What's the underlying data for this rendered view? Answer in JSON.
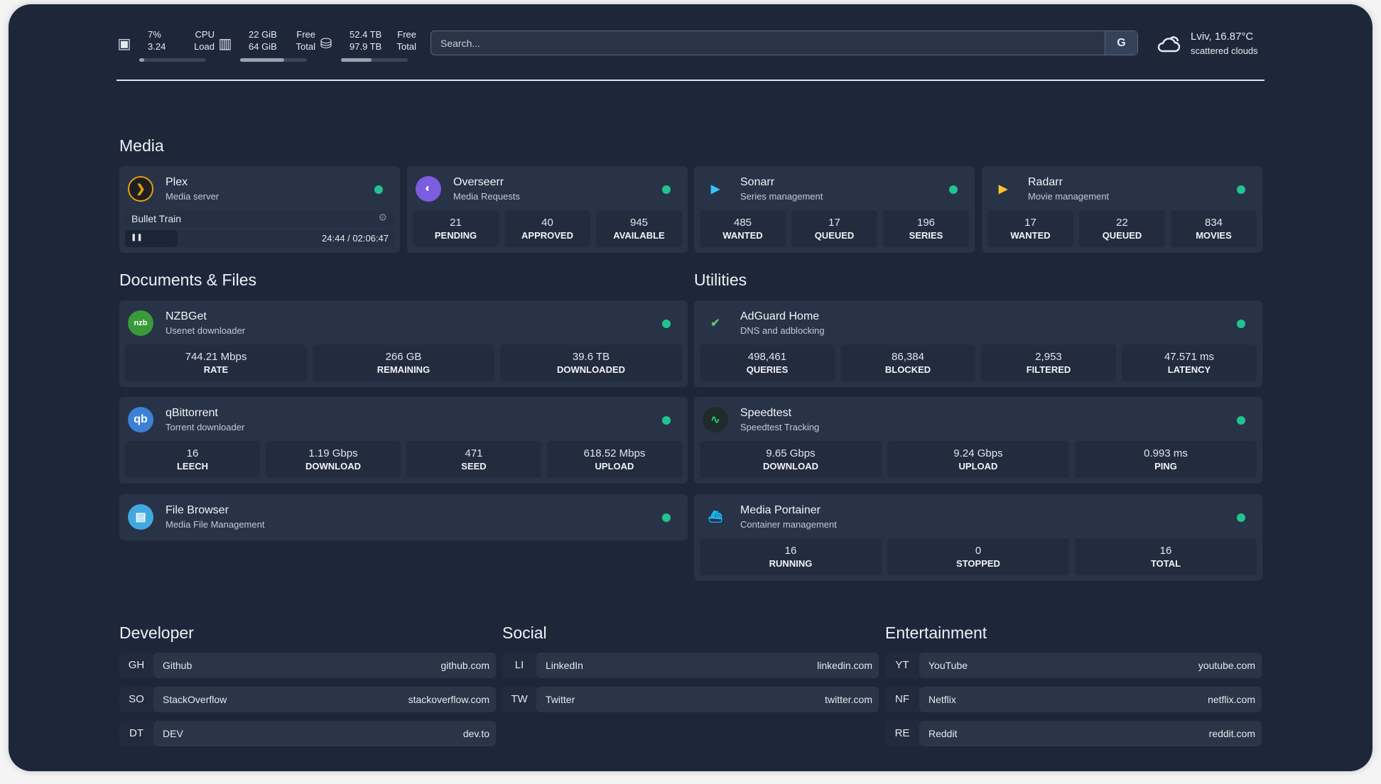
{
  "resources": [
    {
      "icon": "cpu-icon",
      "v1": "7%",
      "v2": "3.24",
      "l1": "CPU",
      "l2": "Load",
      "fill": 0.07
    },
    {
      "icon": "memory-icon",
      "v1": "22 GiB",
      "v2": "64 GiB",
      "l1": "Free",
      "l2": "Total",
      "fill": 0.66
    },
    {
      "icon": "disk-icon",
      "v1": "52.4 TB",
      "v2": "97.9 TB",
      "l1": "Free",
      "l2": "Total",
      "fill": 0.46
    }
  ],
  "search": {
    "placeholder": "Search...",
    "provider": "G"
  },
  "weather": {
    "location": "Lviv, 16.87°C",
    "condition": "scattered clouds",
    "icon": "cloud-icon"
  },
  "colors": {
    "status_online": "#22c38e",
    "background": "#1e273a",
    "card": "#283347"
  },
  "sections": {
    "media": "Media",
    "documents": "Documents & Files",
    "utilities": "Utilities",
    "developer": "Developer",
    "social": "Social",
    "entertainment": "Entertainment"
  },
  "services": [
    {
      "name": "Plex",
      "desc": "Media server",
      "icon": "plex-icon",
      "now_playing": {
        "title": "Bullet Train",
        "time": "24:44 / 02:06:47",
        "progress": 0.195
      }
    },
    {
      "name": "Overseerr",
      "desc": "Media Requests",
      "icon": "overseerr-icon",
      "stats": [
        {
          "v": "21",
          "l": "PENDING"
        },
        {
          "v": "40",
          "l": "APPROVED"
        },
        {
          "v": "945",
          "l": "AVAILABLE"
        }
      ]
    },
    {
      "name": "Sonarr",
      "desc": "Series management",
      "icon": "sonarr-icon",
      "stats": [
        {
          "v": "485",
          "l": "WANTED"
        },
        {
          "v": "17",
          "l": "QUEUED"
        },
        {
          "v": "196",
          "l": "SERIES"
        }
      ]
    },
    {
      "name": "Radarr",
      "desc": "Movie management",
      "icon": "radarr-icon",
      "stats": [
        {
          "v": "17",
          "l": "WANTED"
        },
        {
          "v": "22",
          "l": "QUEUED"
        },
        {
          "v": "834",
          "l": "MOVIES"
        }
      ]
    },
    {
      "name": "NZBGet",
      "desc": "Usenet downloader",
      "icon": "nzbget-icon",
      "icon_text": "nzbget",
      "stats": [
        {
          "v": "744.21 Mbps",
          "l": "RATE"
        },
        {
          "v": "266 GB",
          "l": "REMAINING"
        },
        {
          "v": "39.6 TB",
          "l": "DOWNLOADED"
        }
      ]
    },
    {
      "name": "qBittorrent",
      "desc": "Torrent downloader",
      "icon": "qbittorrent-icon",
      "icon_text": "qb",
      "stats": [
        {
          "v": "16",
          "l": "LEECH"
        },
        {
          "v": "1.19 Gbps",
          "l": "DOWNLOAD"
        },
        {
          "v": "471",
          "l": "SEED"
        },
        {
          "v": "618.52 Mbps",
          "l": "UPLOAD"
        }
      ]
    },
    {
      "name": "File Browser",
      "desc": "Media File Management",
      "icon": "file-browser-icon"
    },
    {
      "name": "AdGuard Home",
      "desc": "DNS and adblocking",
      "icon": "adguard-icon",
      "stats": [
        {
          "v": "498,461",
          "l": "QUERIES"
        },
        {
          "v": "86,384",
          "l": "BLOCKED"
        },
        {
          "v": "2,953",
          "l": "FILTERED"
        },
        {
          "v": "47.571 ms",
          "l": "LATENCY"
        }
      ]
    },
    {
      "name": "Speedtest",
      "desc": "Speedtest Tracking",
      "icon": "speedtest-icon",
      "stats": [
        {
          "v": "9.65 Gbps",
          "l": "DOWNLOAD"
        },
        {
          "v": "9.24 Gbps",
          "l": "UPLOAD"
        },
        {
          "v": "0.993 ms",
          "l": "PING"
        }
      ]
    },
    {
      "name": "Media Portainer",
      "desc": "Container management",
      "icon": "portainer-icon",
      "stats": [
        {
          "v": "16",
          "l": "RUNNING"
        },
        {
          "v": "0",
          "l": "STOPPED"
        },
        {
          "v": "16",
          "l": "TOTAL"
        }
      ]
    }
  ],
  "bookmarks": [
    [
      {
        "abbr": "GH",
        "name": "Github",
        "url": "github.com"
      },
      {
        "abbr": "SO",
        "name": "StackOverflow",
        "url": "stackoverflow.com"
      },
      {
        "abbr": "DT",
        "name": "DEV",
        "url": "dev.to"
      }
    ],
    [
      {
        "abbr": "LI",
        "name": "LinkedIn",
        "url": "linkedin.com"
      },
      {
        "abbr": "TW",
        "name": "Twitter",
        "url": "twitter.com"
      }
    ],
    [
      {
        "abbr": "YT",
        "name": "YouTube",
        "url": "youtube.com"
      },
      {
        "abbr": "NF",
        "name": "Netflix",
        "url": "netflix.com"
      },
      {
        "abbr": "RE",
        "name": "Reddit",
        "url": "reddit.com"
      }
    ]
  ]
}
